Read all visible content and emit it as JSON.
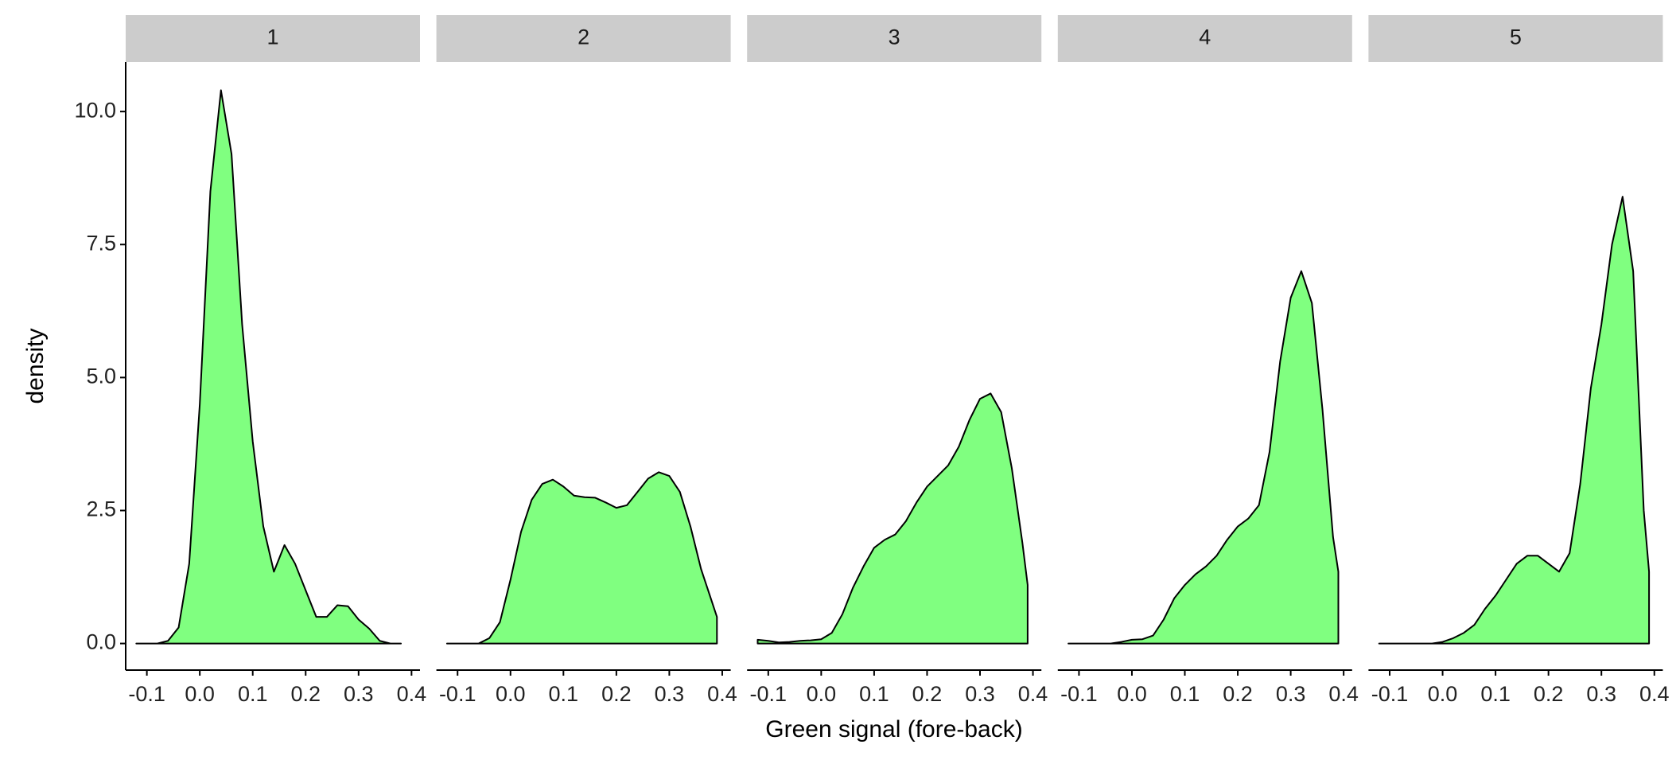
{
  "chart_data": {
    "type": "density",
    "x_label": "Green signal (fore-back)",
    "y_label": "density",
    "color": "#80FF80",
    "xlim": [
      -0.14,
      0.416
    ],
    "xticks": [
      -0.1,
      {
        "value": 0,
        "label": "0.0"
      },
      0.1,
      0.2,
      0.3,
      0.4
    ],
    "ylim": [
      -0.5,
      10.93
    ],
    "yticks": [
      {
        "value": 0,
        "label": "0.0"
      },
      2.5,
      {
        "value": 5,
        "label": "5.0"
      },
      7.5,
      {
        "value": 10,
        "label": "10.0"
      }
    ],
    "facets": [
      {
        "title": "1",
        "x": [
          -0.12,
          -0.08,
          -0.06,
          -0.04,
          -0.02,
          0.0,
          0.02,
          0.04,
          0.06,
          0.08,
          0.1,
          0.12,
          0.14,
          0.16,
          0.18,
          0.2,
          0.22,
          0.24,
          0.26,
          0.28,
          0.3,
          0.32,
          0.34,
          0.36,
          0.38
        ],
        "values": [
          0,
          0,
          0.05,
          0.3,
          1.5,
          4.5,
          8.5,
          10.4,
          9.2,
          6,
          3.8,
          2.2,
          1.35,
          1.85,
          1.5,
          1.0,
          0.5,
          0.5,
          0.72,
          0.7,
          0.45,
          0.28,
          0.05,
          0,
          0
        ]
      },
      {
        "title": "2",
        "x": [
          -0.12,
          -0.06,
          -0.04,
          -0.02,
          0.0,
          0.02,
          0.04,
          0.06,
          0.08,
          0.1,
          0.12,
          0.14,
          0.16,
          0.18,
          0.2,
          0.22,
          0.24,
          0.26,
          0.28,
          0.3,
          0.32,
          0.34,
          0.36,
          0.38,
          0.39
        ],
        "values": [
          0,
          0,
          0.1,
          0.4,
          1.2,
          2.1,
          2.7,
          3.0,
          3.08,
          2.95,
          2.78,
          2.75,
          2.74,
          2.65,
          2.55,
          2.6,
          2.85,
          3.1,
          3.22,
          3.15,
          2.85,
          2.2,
          1.4,
          0.8,
          0.5
        ]
      },
      {
        "title": "3",
        "x": [
          -0.12,
          -0.1,
          -0.08,
          -0.06,
          -0.04,
          -0.02,
          0.0,
          0.02,
          0.04,
          0.06,
          0.08,
          0.1,
          0.12,
          0.14,
          0.16,
          0.18,
          0.2,
          0.22,
          0.24,
          0.26,
          0.28,
          0.3,
          0.32,
          0.34,
          0.36,
          0.38,
          0.39
        ],
        "values": [
          0.07,
          0.05,
          0.02,
          0.03,
          0.05,
          0.06,
          0.08,
          0.2,
          0.55,
          1.05,
          1.45,
          1.8,
          1.95,
          2.05,
          2.3,
          2.65,
          2.95,
          3.15,
          3.35,
          3.7,
          4.2,
          4.6,
          4.7,
          4.35,
          3.3,
          1.9,
          1.1
        ]
      },
      {
        "title": "4",
        "x": [
          -0.12,
          -0.04,
          -0.02,
          0.0,
          0.02,
          0.04,
          0.06,
          0.08,
          0.1,
          0.12,
          0.14,
          0.16,
          0.18,
          0.2,
          0.22,
          0.24,
          0.26,
          0.28,
          0.3,
          0.32,
          0.34,
          0.36,
          0.38,
          0.39
        ],
        "values": [
          0,
          0,
          0.03,
          0.07,
          0.08,
          0.15,
          0.45,
          0.85,
          1.1,
          1.3,
          1.45,
          1.65,
          1.95,
          2.2,
          2.35,
          2.6,
          3.6,
          5.3,
          6.5,
          7.0,
          6.4,
          4.4,
          2.0,
          1.35
        ]
      },
      {
        "title": "5",
        "x": [
          -0.12,
          -0.02,
          0.0,
          0.02,
          0.04,
          0.06,
          0.08,
          0.1,
          0.12,
          0.14,
          0.16,
          0.18,
          0.2,
          0.22,
          0.24,
          0.26,
          0.28,
          0.3,
          0.32,
          0.34,
          0.36,
          0.38,
          0.39
        ],
        "values": [
          0,
          0,
          0.03,
          0.1,
          0.2,
          0.35,
          0.65,
          0.9,
          1.2,
          1.5,
          1.65,
          1.65,
          1.5,
          1.35,
          1.7,
          3.0,
          4.8,
          6.0,
          7.5,
          8.4,
          7.0,
          2.5,
          1.35
        ]
      }
    ]
  }
}
